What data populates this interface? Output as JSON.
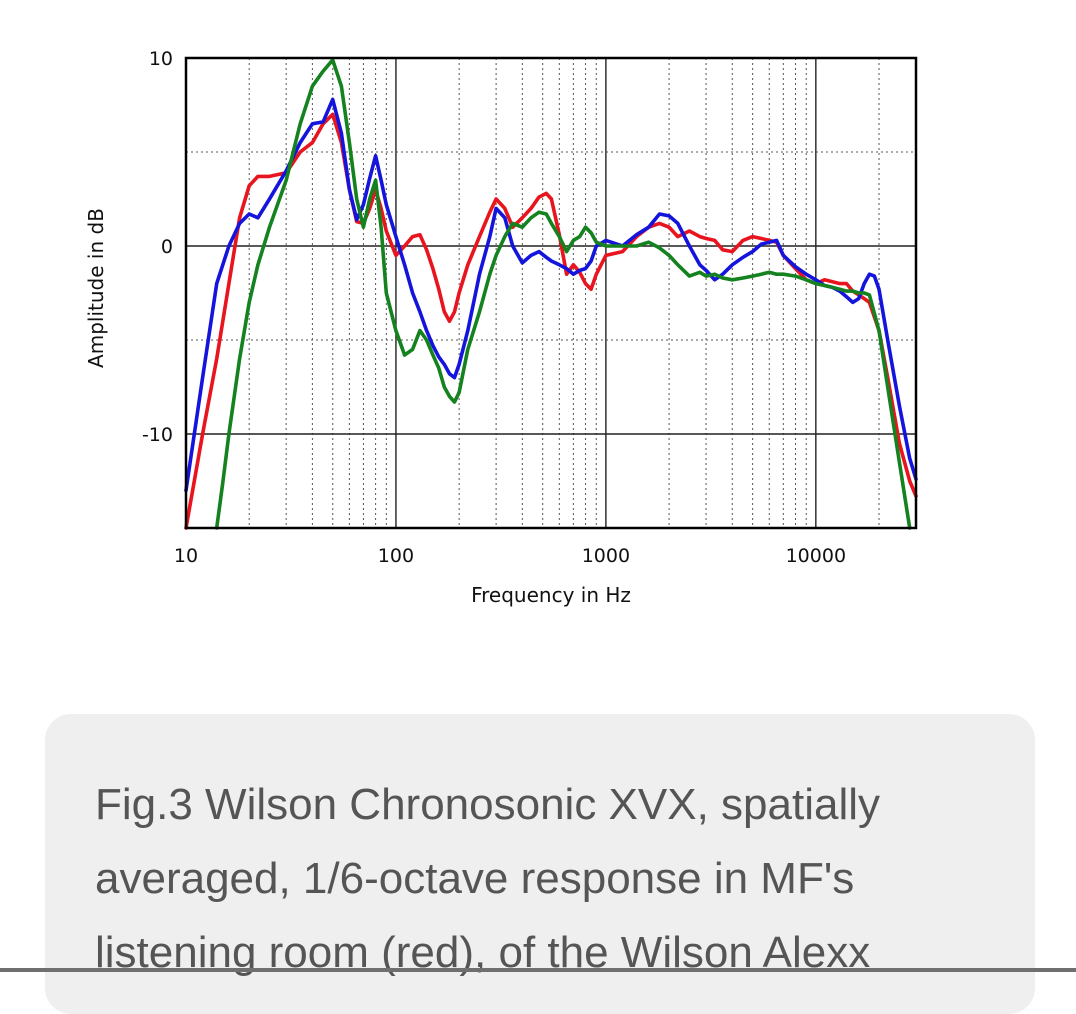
{
  "chart_data": {
    "type": "line",
    "title": "",
    "xlabel": "Frequency in Hz",
    "ylabel": "Amplitude in dB",
    "x_scale": "log",
    "xlim": [
      10,
      30000
    ],
    "ylim": [
      -15,
      10
    ],
    "x_ticks": [
      {
        "value": 10,
        "label": "10"
      },
      {
        "value": 100,
        "label": "100"
      },
      {
        "value": 1000,
        "label": "1000"
      },
      {
        "value": 10000,
        "label": "10000"
      }
    ],
    "y_ticks": [
      {
        "value": 10,
        "label": "10"
      },
      {
        "value": 0,
        "label": "0"
      },
      {
        "value": -10,
        "label": "-10"
      }
    ],
    "grid": true,
    "legend": "none",
    "series": [
      {
        "color": "#e8141e",
        "x": [
          10,
          12,
          14,
          16,
          18,
          20,
          22,
          25,
          30,
          35,
          40,
          45,
          50,
          55,
          60,
          65,
          70,
          75,
          80,
          85,
          90,
          100,
          110,
          120,
          130,
          140,
          150,
          160,
          170,
          180,
          190,
          200,
          220,
          250,
          280,
          300,
          330,
          360,
          400,
          440,
          480,
          520,
          550,
          600,
          650,
          700,
          750,
          800,
          850,
          900,
          1000,
          1200,
          1400,
          1600,
          1800,
          2000,
          2200,
          2500,
          2800,
          3000,
          3300,
          3600,
          4000,
          4500,
          5000,
          5500,
          6000,
          6500,
          7000,
          8000,
          9000,
          10000,
          11000,
          12000,
          13000,
          14000,
          15000,
          16000,
          17000,
          18000,
          20000,
          22000,
          25000,
          28000,
          30000
        ],
        "values": [
          -15.0,
          -10.0,
          -6.0,
          -2.0,
          1.5,
          3.2,
          3.7,
          3.7,
          3.9,
          5.0,
          5.5,
          6.5,
          7.0,
          5.5,
          3.0,
          1.3,
          1.2,
          2.0,
          3.0,
          2.0,
          0.8,
          -0.5,
          0.0,
          0.5,
          0.6,
          -0.2,
          -1.2,
          -2.3,
          -3.5,
          -4.0,
          -3.5,
          -2.5,
          -1.0,
          0.5,
          1.8,
          2.5,
          2.0,
          1.0,
          1.5,
          2.0,
          2.6,
          2.8,
          2.5,
          0.6,
          -1.5,
          -1.0,
          -1.4,
          -2.0,
          -2.3,
          -1.5,
          -0.5,
          -0.3,
          0.5,
          1.0,
          1.2,
          1.0,
          0.5,
          0.8,
          0.5,
          0.4,
          0.3,
          -0.2,
          -0.3,
          0.3,
          0.5,
          0.4,
          0.3,
          0.2,
          -0.5,
          -1.2,
          -1.8,
          -2.0,
          -1.8,
          -1.9,
          -2.0,
          -2.0,
          -2.4,
          -2.6,
          -2.8,
          -3.0,
          -4.5,
          -7.0,
          -10.5,
          -12.5,
          -13.3
        ]
      },
      {
        "color": "#1414dc",
        "x": [
          10,
          12,
          14,
          16,
          18,
          20,
          22,
          25,
          30,
          35,
          40,
          45,
          50,
          55,
          60,
          65,
          70,
          75,
          80,
          85,
          90,
          100,
          110,
          120,
          130,
          140,
          150,
          160,
          170,
          180,
          190,
          200,
          220,
          250,
          280,
          300,
          330,
          360,
          400,
          440,
          480,
          520,
          550,
          600,
          650,
          700,
          750,
          800,
          850,
          900,
          1000,
          1200,
          1400,
          1600,
          1800,
          2000,
          2200,
          2500,
          2800,
          3000,
          3300,
          3600,
          4000,
          4500,
          5000,
          5500,
          6000,
          6500,
          7000,
          8000,
          9000,
          10000,
          11000,
          12000,
          13000,
          14000,
          15000,
          16000,
          17000,
          18000,
          19000,
          20000,
          22000,
          25000,
          28000,
          30000
        ],
        "values": [
          -13.0,
          -7.0,
          -2.0,
          0.0,
          1.2,
          1.7,
          1.5,
          2.5,
          4.0,
          5.5,
          6.5,
          6.6,
          7.8,
          6.0,
          3.0,
          1.4,
          2.2,
          3.6,
          4.8,
          3.5,
          2.2,
          0.5,
          -1.0,
          -2.5,
          -3.5,
          -4.5,
          -5.3,
          -5.9,
          -6.3,
          -6.8,
          -7.0,
          -6.3,
          -4.5,
          -1.5,
          0.5,
          2.0,
          1.5,
          0.0,
          -0.9,
          -0.5,
          -0.3,
          -0.6,
          -0.8,
          -1.0,
          -1.2,
          -1.5,
          -1.3,
          -1.2,
          -0.8,
          0.0,
          0.3,
          0.0,
          0.6,
          1.0,
          1.7,
          1.6,
          1.2,
          0.0,
          -1.0,
          -1.3,
          -1.8,
          -1.5,
          -1.0,
          -0.6,
          -0.3,
          0.1,
          0.2,
          0.3,
          -0.5,
          -1.1,
          -1.5,
          -1.8,
          -2.1,
          -2.2,
          -2.4,
          -2.7,
          -3.0,
          -2.8,
          -2.0,
          -1.5,
          -1.6,
          -2.3,
          -5.0,
          -8.5,
          -11.3,
          -12.4
        ]
      },
      {
        "color": "#14821e",
        "x": [
          14,
          15,
          16,
          18,
          20,
          22,
          25,
          30,
          35,
          40,
          45,
          50,
          55,
          60,
          65,
          70,
          75,
          80,
          85,
          90,
          100,
          110,
          120,
          130,
          140,
          150,
          160,
          170,
          180,
          190,
          200,
          220,
          250,
          280,
          300,
          330,
          360,
          400,
          440,
          480,
          520,
          550,
          600,
          650,
          700,
          750,
          800,
          850,
          900,
          1000,
          1200,
          1400,
          1600,
          1800,
          2000,
          2200,
          2500,
          2800,
          3000,
          3300,
          3600,
          4000,
          4500,
          5000,
          5500,
          6000,
          6500,
          7000,
          8000,
          9000,
          10000,
          11000,
          12000,
          13000,
          14000,
          15000,
          16000,
          17000,
          18000,
          20000,
          22000,
          25000,
          28000
        ],
        "values": [
          -15.0,
          -12.5,
          -10.0,
          -6.0,
          -3.0,
          -1.0,
          1.0,
          3.5,
          6.5,
          8.5,
          9.3,
          9.9,
          8.5,
          5.5,
          2.5,
          1.0,
          2.5,
          3.5,
          1.0,
          -2.5,
          -4.5,
          -5.8,
          -5.5,
          -4.5,
          -5.0,
          -5.8,
          -6.5,
          -7.5,
          -8.0,
          -8.3,
          -7.8,
          -5.5,
          -3.5,
          -1.5,
          -0.5,
          0.5,
          1.2,
          1.0,
          1.5,
          1.8,
          1.7,
          1.2,
          0.5,
          -0.3,
          0.3,
          0.5,
          1.0,
          0.7,
          0.2,
          0.0,
          0.0,
          0.0,
          0.2,
          -0.1,
          -0.5,
          -1.0,
          -1.6,
          -1.4,
          -1.6,
          -1.5,
          -1.7,
          -1.8,
          -1.7,
          -1.6,
          -1.5,
          -1.4,
          -1.5,
          -1.5,
          -1.6,
          -1.8,
          -2.0,
          -2.1,
          -2.2,
          -2.3,
          -2.4,
          -2.4,
          -2.5,
          -2.5,
          -2.6,
          -4.5,
          -7.5,
          -11.5,
          -15.0
        ]
      }
    ]
  },
  "caption": {
    "line1": "Fig.3 Wilson Chronosonic XVX, spatially",
    "line2": "averaged, 1/6-octave response in MF's",
    "line3": "listening room (red), of the Wilson Alexx"
  }
}
